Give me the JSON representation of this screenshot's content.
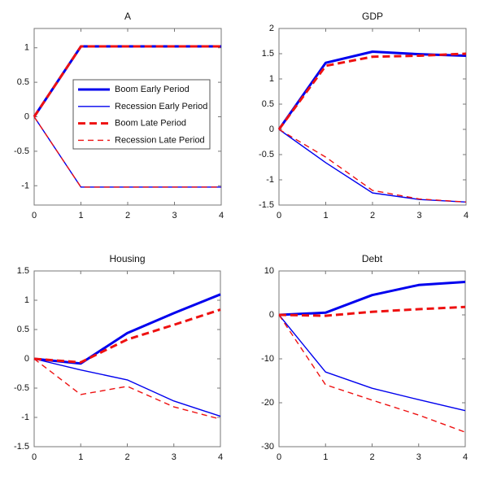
{
  "figure": {
    "background": "#ffffff"
  },
  "colors": {
    "blue": "#0000EE",
    "red": "#EE1111",
    "axis": "#777777",
    "text": "#111111",
    "legend_border": "#555555"
  },
  "series_styles": [
    {
      "label": "Boom Early Period",
      "color": "blue",
      "width": 3,
      "dash": null
    },
    {
      "label": "Recession Early Period",
      "color": "blue",
      "width": 1.4,
      "dash": null
    },
    {
      "label": "Boom Late Period",
      "color": "red",
      "width": 3,
      "dash": "9,5"
    },
    {
      "label": "Recession Late Period",
      "color": "red",
      "width": 1.4,
      "dash": "7,5"
    }
  ],
  "chart_data": [
    {
      "type": "line",
      "title": "A",
      "x": [
        0,
        1,
        2,
        3,
        4
      ],
      "xlim": [
        0,
        4
      ],
      "ylim": [
        -1.28,
        1.28
      ],
      "xticks": [
        0,
        1,
        2,
        3,
        4
      ],
      "yticks": [
        -1,
        -0.5,
        0,
        0.5,
        1
      ],
      "grid": false,
      "series": [
        {
          "name": "Boom Early Period",
          "values": [
            0,
            1.02,
            1.02,
            1.02,
            1.02
          ]
        },
        {
          "name": "Recession Early Period",
          "values": [
            0,
            -1.02,
            -1.02,
            -1.02,
            -1.02
          ]
        },
        {
          "name": "Boom Late Period",
          "values": [
            0,
            1.02,
            1.02,
            1.02,
            1.02
          ]
        },
        {
          "name": "Recession Late Period",
          "values": [
            0,
            -1.02,
            -1.02,
            -1.02,
            -1.02
          ]
        }
      ],
      "legend": {
        "position": "center",
        "entries": [
          "Boom Early Period",
          "Recession Early Period",
          "Boom Late Period",
          "Recession Late Period"
        ]
      }
    },
    {
      "type": "line",
      "title": "GDP",
      "x": [
        0,
        1,
        2,
        3,
        4
      ],
      "xlim": [
        0,
        4
      ],
      "ylim": [
        -1.5,
        2
      ],
      "xticks": [
        0,
        1,
        2,
        3,
        4
      ],
      "yticks": [
        -1.5,
        -1,
        -0.5,
        0,
        0.5,
        1,
        1.5,
        2
      ],
      "grid": false,
      "series": [
        {
          "name": "Boom Early Period",
          "values": [
            0,
            1.32,
            1.54,
            1.49,
            1.46
          ]
        },
        {
          "name": "Recession Early Period",
          "values": [
            0,
            -0.66,
            -1.26,
            -1.39,
            -1.44
          ]
        },
        {
          "name": "Boom Late Period",
          "values": [
            0,
            1.26,
            1.44,
            1.46,
            1.5
          ]
        },
        {
          "name": "Recession Late Period",
          "values": [
            0,
            -0.55,
            -1.21,
            -1.38,
            -1.44
          ]
        }
      ],
      "legend": null
    },
    {
      "type": "line",
      "title": "Housing",
      "x": [
        0,
        1,
        2,
        3,
        4
      ],
      "xlim": [
        0,
        4
      ],
      "ylim": [
        -1.5,
        1.5
      ],
      "xticks": [
        0,
        1,
        2,
        3,
        4
      ],
      "yticks": [
        -1.5,
        -1,
        -0.5,
        0,
        0.5,
        1,
        1.5
      ],
      "grid": false,
      "series": [
        {
          "name": "Boom Early Period",
          "values": [
            0,
            -0.08,
            0.44,
            0.78,
            1.1
          ]
        },
        {
          "name": "Recession Early Period",
          "values": [
            0,
            -0.19,
            -0.36,
            -0.72,
            -0.98
          ]
        },
        {
          "name": "Boom Late Period",
          "values": [
            0,
            -0.06,
            0.33,
            0.58,
            0.84
          ]
        },
        {
          "name": "Recession Late Period",
          "values": [
            0,
            -0.61,
            -0.47,
            -0.82,
            -1.03
          ]
        }
      ],
      "legend": null
    },
    {
      "type": "line",
      "title": "Debt",
      "x": [
        0,
        1,
        2,
        3,
        4
      ],
      "xlim": [
        0,
        4
      ],
      "ylim": [
        -30,
        10
      ],
      "xticks": [
        0,
        1,
        2,
        3,
        4
      ],
      "yticks": [
        -30,
        -20,
        -10,
        0,
        10
      ],
      "grid": false,
      "series": [
        {
          "name": "Boom Early Period",
          "values": [
            0,
            0.5,
            4.5,
            6.8,
            7.5
          ]
        },
        {
          "name": "Recession Early Period",
          "values": [
            0,
            -13.0,
            -16.7,
            -19.3,
            -21.8
          ]
        },
        {
          "name": "Boom Late Period",
          "values": [
            0,
            -0.2,
            0.7,
            1.3,
            1.8
          ]
        },
        {
          "name": "Recession Late Period",
          "values": [
            0,
            -15.9,
            -19.4,
            -22.8,
            -26.7
          ]
        }
      ],
      "legend": null
    }
  ]
}
